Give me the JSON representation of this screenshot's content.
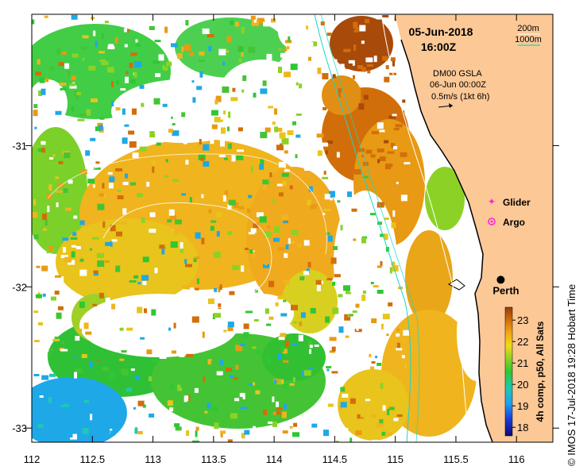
{
  "map": {
    "date": "05-Jun-2018",
    "time": "16:00Z",
    "isobath_labels": [
      "200m",
      "1000m"
    ],
    "isobath_colors": [
      "#ffffff",
      "#17d8c8"
    ],
    "vector_legend": {
      "line1": "DM00 GSLA",
      "line2": "06-Jun 00:00Z",
      "line3": "0.5m/s (1kt 6h)"
    },
    "legend": {
      "glider_label": "Glider",
      "glider_color": "#ff22dd",
      "argo_label": "Argo",
      "argo_color": "#ff22dd"
    },
    "city": {
      "name": "Perth",
      "lon": 115.87,
      "lat": -31.95
    },
    "x_ticks": [
      {
        "value": 112,
        "label": "112"
      },
      {
        "value": 112.5,
        "label": "112.5"
      },
      {
        "value": 113,
        "label": "113"
      },
      {
        "value": 113.5,
        "label": "113.5"
      },
      {
        "value": 114,
        "label": "114"
      },
      {
        "value": 114.5,
        "label": "114.5"
      },
      {
        "value": 115,
        "label": "115"
      },
      {
        "value": 115.5,
        "label": "115.5"
      },
      {
        "value": 116,
        "label": "116"
      }
    ],
    "y_ticks": [
      {
        "value": -31,
        "label": "-31"
      },
      {
        "value": -32,
        "label": "-32"
      },
      {
        "value": -33,
        "label": "-33"
      }
    ],
    "colorbar": {
      "ticks": [
        "18",
        "19",
        "20",
        "21",
        "22",
        "23"
      ],
      "min": 17.6,
      "max": 23.6,
      "title": "4h comp, p50, All Sats"
    },
    "credit": "© IMOS 17-Jul-2018 19:28 Hobart Time",
    "land_color": "#fcc896"
  }
}
